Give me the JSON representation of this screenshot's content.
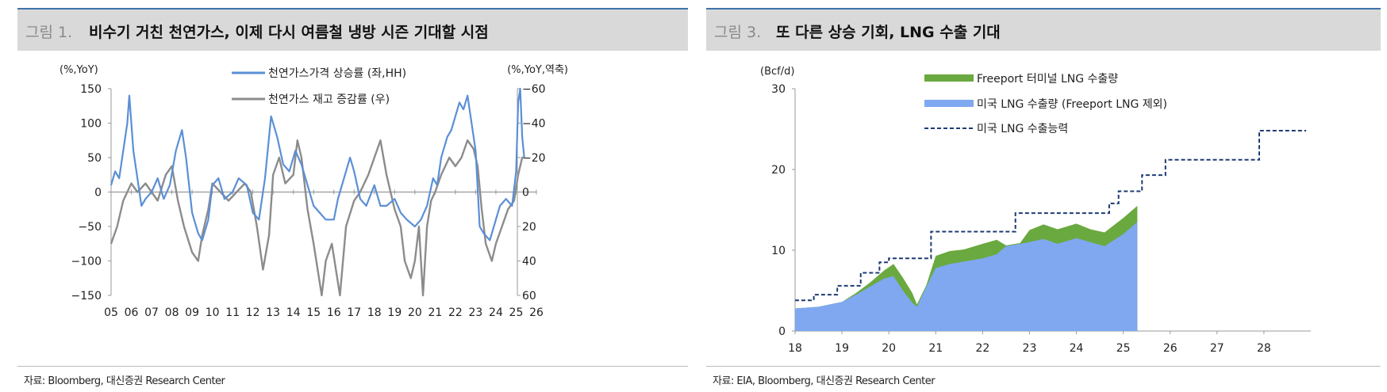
{
  "panels": [
    {
      "figure_label": "그림 1.",
      "title": "비수기 거친 천연가스, 이제 다시 여름철 냉방 시즌 기대할 시점",
      "source": "자료: Bloomberg, 대신증권 Research Center"
    },
    {
      "figure_label": "그림 3.",
      "title": "또 다른 상승 기회, LNG 수출 기대",
      "source": "자료: EIA, Bloomberg, 대신증권 Research Center"
    }
  ],
  "colors": {
    "blue": "#5b8fd6",
    "gray": "#8c8c8c",
    "green": "#6aa93f",
    "lightblue": "#7fa8f0",
    "navy": "#1f3b73",
    "title_bg": "#d9d9d9"
  },
  "chart_data": [
    {
      "type": "line",
      "title": "비수기 거친 천연가스, 이제 다시 여름철 냉방 시즌 기대할 시점",
      "ylabel_left": "(%,YoY)",
      "ylabel_right": "(%,YoY,역축)",
      "ylim_left": [
        -150,
        150
      ],
      "yticks_left": [
        "150",
        "100",
        "50",
        "0",
        "−50",
        "−100",
        "−150"
      ],
      "ylim_right": [
        60,
        -60
      ],
      "yticks_right": [
        "−60",
        "−40",
        "−20",
        "0",
        "20",
        "40",
        "60"
      ],
      "xlim": [
        2005,
        2026
      ],
      "xticks": [
        "05",
        "06",
        "07",
        "08",
        "09",
        "10",
        "11",
        "12",
        "13",
        "14",
        "15",
        "16",
        "17",
        "18",
        "19",
        "20",
        "21",
        "22",
        "23",
        "24",
        "25",
        "26"
      ],
      "legend": "top-center",
      "series": [
        {
          "name": "천연가스가격 상승률 (좌,HH)",
          "axis": "left",
          "color": "#5b8fd6",
          "x": [
            2005.0,
            2005.2,
            2005.4,
            2005.6,
            2005.8,
            2005.9,
            2006.0,
            2006.1,
            2006.3,
            2006.5,
            2006.7,
            2007.0,
            2007.3,
            2007.6,
            2007.9,
            2008.2,
            2008.5,
            2008.7,
            2009.0,
            2009.3,
            2009.5,
            2009.8,
            2010.0,
            2010.3,
            2010.6,
            2011.0,
            2011.3,
            2011.7,
            2012.0,
            2012.3,
            2012.6,
            2012.9,
            2013.2,
            2013.5,
            2013.8,
            2014.1,
            2014.4,
            2014.7,
            2015.0,
            2015.3,
            2015.6,
            2016.0,
            2016.2,
            2016.5,
            2016.8,
            2017.0,
            2017.3,
            2017.6,
            2018.0,
            2018.3,
            2018.6,
            2019.0,
            2019.3,
            2019.6,
            2020.0,
            2020.3,
            2020.6,
            2020.9,
            2021.1,
            2021.3,
            2021.6,
            2021.8,
            2022.0,
            2022.2,
            2022.4,
            2022.6,
            2022.8,
            2023.0,
            2023.2,
            2023.4,
            2023.7,
            2024.0,
            2024.2,
            2024.5,
            2024.8,
            2025.0,
            2025.1,
            2025.2,
            2025.3,
            2025.4
          ],
          "values": [
            10,
            30,
            20,
            60,
            100,
            140,
            100,
            60,
            20,
            -20,
            -10,
            0,
            20,
            -10,
            10,
            60,
            90,
            50,
            -30,
            -60,
            -70,
            -40,
            10,
            20,
            -10,
            0,
            20,
            10,
            -30,
            -40,
            20,
            110,
            80,
            40,
            30,
            60,
            40,
            10,
            -20,
            -30,
            -40,
            -40,
            -10,
            20,
            50,
            30,
            -10,
            -20,
            10,
            -20,
            -20,
            -10,
            -30,
            -40,
            -50,
            -40,
            -20,
            20,
            10,
            50,
            80,
            90,
            110,
            130,
            120,
            140,
            100,
            60,
            -50,
            -60,
            -70,
            -40,
            -20,
            -10,
            -20,
            30,
            130,
            150,
            80,
            50
          ]
        },
        {
          "name": "천연가스 재고 증감률 (우)",
          "axis": "right",
          "color": "#8c8c8c",
          "x": [
            2005.0,
            2005.3,
            2005.6,
            2006.0,
            2006.3,
            2006.7,
            2007.0,
            2007.3,
            2007.7,
            2008.0,
            2008.3,
            2008.6,
            2009.0,
            2009.3,
            2009.5,
            2009.8,
            2010.0,
            2010.4,
            2010.8,
            2011.2,
            2011.6,
            2011.9,
            2012.2,
            2012.5,
            2012.8,
            2013.0,
            2013.3,
            2013.6,
            2014.0,
            2014.2,
            2014.4,
            2014.7,
            2015.0,
            2015.2,
            2015.4,
            2015.6,
            2015.9,
            2016.1,
            2016.3,
            2016.6,
            2017.0,
            2017.3,
            2017.7,
            2018.0,
            2018.3,
            2018.6,
            2019.0,
            2019.3,
            2019.5,
            2019.8,
            2020.0,
            2020.2,
            2020.4,
            2020.6,
            2020.8,
            2021.0,
            2021.3,
            2021.7,
            2022.0,
            2022.3,
            2022.6,
            2022.9,
            2023.1,
            2023.3,
            2023.5,
            2023.8,
            2024.0,
            2024.3,
            2024.6,
            2024.9,
            2025.1,
            2025.3,
            2025.4
          ],
          "values": [
            30,
            20,
            5,
            -5,
            0,
            -5,
            0,
            5,
            -10,
            -15,
            5,
            20,
            35,
            40,
            25,
            10,
            -5,
            0,
            5,
            0,
            -5,
            0,
            20,
            45,
            25,
            -10,
            -20,
            -5,
            -10,
            -30,
            -20,
            10,
            30,
            45,
            60,
            40,
            30,
            45,
            60,
            20,
            5,
            0,
            -10,
            -20,
            -30,
            -10,
            10,
            20,
            40,
            50,
            40,
            20,
            60,
            20,
            5,
            0,
            -10,
            -20,
            -15,
            -20,
            -30,
            -25,
            -15,
            10,
            30,
            40,
            30,
            20,
            10,
            5,
            -10,
            -20,
            -20
          ]
        }
      ]
    },
    {
      "type": "area",
      "title": "또 다른 상승 기회, LNG 수출 기대",
      "ylabel": "(Bcf/d)",
      "ylim": [
        0,
        30
      ],
      "yticks": [
        "30",
        "20",
        "10",
        "0"
      ],
      "xlim": [
        2018,
        2029
      ],
      "xticks": [
        "18",
        "19",
        "20",
        "21",
        "22",
        "23",
        "24",
        "25",
        "26",
        "27",
        "28"
      ],
      "legend": "top-center",
      "series": [
        {
          "name": "Freeport 터미널 LNG 수출량",
          "kind": "stacked-area",
          "color": "#6aa93f",
          "x": [
            2018.0,
            2018.5,
            2019.0,
            2019.3,
            2019.6,
            2019.9,
            2020.1,
            2020.3,
            2020.5,
            2020.6,
            2020.8,
            2021.0,
            2021.3,
            2021.6,
            2022.0,
            2022.3,
            2022.5,
            2022.8,
            2023.0,
            2023.3,
            2023.6,
            2024.0,
            2024.3,
            2024.6,
            2025.0,
            2025.3
          ],
          "values": [
            0,
            0,
            0,
            0.2,
            0.5,
            1.0,
            1.5,
            1.6,
            1.2,
            0.3,
            0.2,
            1.5,
            1.6,
            1.5,
            1.8,
            1.8,
            0.1,
            0.1,
            1.5,
            1.8,
            1.8,
            1.8,
            1.6,
            1.7,
            2.0,
            2.0
          ]
        },
        {
          "name": "미국 LNG 수출량 (Freeport LNG 제외)",
          "kind": "stacked-area",
          "color": "#7fa8f0",
          "x": [
            2018.0,
            2018.5,
            2019.0,
            2019.3,
            2019.6,
            2019.9,
            2020.1,
            2020.3,
            2020.5,
            2020.6,
            2020.8,
            2021.0,
            2021.3,
            2021.6,
            2022.0,
            2022.3,
            2022.5,
            2022.8,
            2023.0,
            2023.3,
            2023.6,
            2024.0,
            2024.3,
            2024.6,
            2025.0,
            2025.3
          ],
          "values": [
            2.8,
            3.0,
            3.6,
            4.5,
            5.5,
            6.5,
            6.8,
            5.0,
            3.5,
            3.0,
            5.5,
            7.8,
            8.3,
            8.6,
            9.0,
            9.5,
            10.5,
            10.8,
            11.0,
            11.4,
            10.8,
            11.5,
            11.0,
            10.5,
            12.0,
            13.5
          ]
        },
        {
          "name": "미국 LNG 수출능력",
          "kind": "step",
          "color": "#1f3b73",
          "dash": true,
          "x": [
            2018.0,
            2018.4,
            2018.9,
            2019.4,
            2019.8,
            2020.0,
            2020.9,
            2021.8,
            2022.7,
            2024.5,
            2024.7,
            2024.9,
            2025.4,
            2025.9,
            2027.9,
            2028.9
          ],
          "values": [
            3.8,
            4.5,
            5.6,
            7.2,
            8.5,
            9.0,
            12.3,
            12.3,
            14.6,
            14.6,
            15.8,
            17.3,
            19.3,
            21.2,
            24.8,
            24.8
          ]
        }
      ]
    }
  ]
}
